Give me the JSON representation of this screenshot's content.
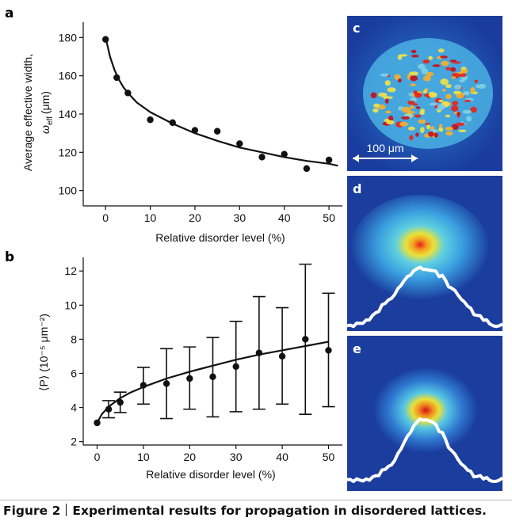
{
  "caption": {
    "figure_label": "Figure 2",
    "text": "Experimental results for propagation in disordered lattices."
  },
  "panels": {
    "c": {
      "letter": "c",
      "scale_label": "100 μm"
    },
    "d": {
      "letter": "d"
    },
    "e": {
      "letter": "e"
    }
  },
  "colors": {
    "map_background": "#1a3d9e",
    "map_mid": "#3fa0e0",
    "map_hot": "#e8221a",
    "profile_line": "#ffffff",
    "plot_line": "#111111"
  },
  "chart_data": [
    {
      "panel": "a",
      "type": "scatter",
      "title": "",
      "xlabel": "Relative disorder level (%)",
      "ylabel_line1": "Average effective width,",
      "ylabel_symbol": "ω",
      "ylabel_sub": "eff",
      "ylabel_unit": "(μm)",
      "xlim": [
        -5,
        53
      ],
      "ylim": [
        92,
        188
      ],
      "xticks": [
        0,
        10,
        20,
        30,
        40,
        50
      ],
      "yticks": [
        100,
        120,
        140,
        160,
        180
      ],
      "points": {
        "x": [
          0,
          2.5,
          5,
          10,
          15,
          20,
          25,
          30,
          35,
          40,
          45,
          50
        ],
        "y": [
          179,
          159,
          151,
          137,
          135.5,
          131.5,
          131,
          124.5,
          117.5,
          119,
          111.5,
          116
        ]
      },
      "fit_line": {
        "x": [
          0,
          1,
          2,
          3,
          4,
          5,
          7,
          10,
          15,
          20,
          25,
          30,
          35,
          40,
          45,
          50,
          52
        ],
        "y": [
          180,
          170,
          163,
          158,
          154,
          151,
          146,
          141,
          135,
          130,
          126,
          122.5,
          120,
          117.5,
          115.5,
          114,
          113
        ]
      }
    },
    {
      "panel": "b",
      "type": "scatter",
      "title": "",
      "xlabel": "Relative disorder level (%)",
      "ylabel": "⟨P⟩ (10⁻⁵ μm⁻²)",
      "xlim": [
        -3,
        53
      ],
      "ylim": [
        1.8,
        12.8
      ],
      "xticks": [
        0,
        10,
        20,
        30,
        40,
        50
      ],
      "yticks": [
        2,
        4,
        6,
        8,
        10,
        12
      ],
      "points": {
        "x": [
          0,
          2.5,
          5,
          10,
          15,
          20,
          25,
          30,
          35,
          40,
          45,
          50
        ],
        "y": [
          3.1,
          3.9,
          4.3,
          5.3,
          5.4,
          5.7,
          5.8,
          6.4,
          7.2,
          7.0,
          8.0,
          7.35
        ]
      },
      "error_bars": {
        "low": [
          3.1,
          3.4,
          3.7,
          4.2,
          3.35,
          3.9,
          3.45,
          3.75,
          3.9,
          4.2,
          3.6,
          4.05
        ],
        "high": [
          3.1,
          4.4,
          4.9,
          6.35,
          7.45,
          7.55,
          8.1,
          9.05,
          10.5,
          9.85,
          12.4,
          10.7
        ]
      },
      "fit_line": {
        "x": [
          0,
          1,
          2,
          3,
          5,
          7,
          10,
          15,
          20,
          25,
          30,
          35,
          40,
          45,
          50
        ],
        "y": [
          3.1,
          3.6,
          3.9,
          4.15,
          4.55,
          4.85,
          5.2,
          5.7,
          6.1,
          6.45,
          6.8,
          7.1,
          7.35,
          7.6,
          7.85
        ]
      }
    }
  ]
}
